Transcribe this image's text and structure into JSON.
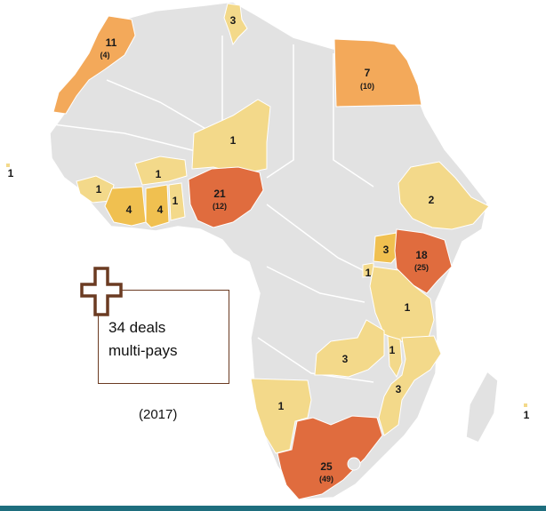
{
  "colors": {
    "land": "#e2e2e2",
    "border": "#ffffff",
    "tier1": "#f3d98a",
    "tier2": "#f0c050",
    "tier3": "#f3a95a",
    "tier4": "#e06c3e",
    "note_border": "#6b3b22",
    "bar": "#1e6e7e"
  },
  "countries": [
    {
      "name": "Morocco",
      "deals": "11",
      "secondary": "(4)"
    },
    {
      "name": "Tunisia",
      "deals": "3",
      "secondary": ""
    },
    {
      "name": "Egypt",
      "deals": "7",
      "secondary": "(10)"
    },
    {
      "name": "Niger",
      "deals": "1",
      "secondary": ""
    },
    {
      "name": "Burkina Faso",
      "deals": "1",
      "secondary": ""
    },
    {
      "name": "Guinea",
      "deals": "1",
      "secondary": ""
    },
    {
      "name": "Cote d'Ivoire",
      "deals": "4",
      "secondary": ""
    },
    {
      "name": "Ghana",
      "deals": "4",
      "secondary": ""
    },
    {
      "name": "Togo/Benin",
      "deals": "1",
      "secondary": ""
    },
    {
      "name": "Nigeria",
      "deals": "21",
      "secondary": "(12)"
    },
    {
      "name": "Ethiopia",
      "deals": "2",
      "secondary": ""
    },
    {
      "name": "Uganda",
      "deals": "3",
      "secondary": ""
    },
    {
      "name": "Kenya",
      "deals": "18",
      "secondary": "(25)"
    },
    {
      "name": "Rwanda",
      "deals": "1",
      "secondary": ""
    },
    {
      "name": "Tanzania",
      "deals": "1",
      "secondary": ""
    },
    {
      "name": "Zambia",
      "deals": "3",
      "secondary": ""
    },
    {
      "name": "Malawi",
      "deals": "1",
      "secondary": ""
    },
    {
      "name": "Mozambique",
      "deals": "3",
      "secondary": ""
    },
    {
      "name": "Namibia",
      "deals": "1",
      "secondary": ""
    },
    {
      "name": "South Africa",
      "deals": "25",
      "secondary": "(49)"
    },
    {
      "name": "Cape Verde",
      "deals": "1",
      "secondary": ""
    },
    {
      "name": "Mauritius",
      "deals": "1",
      "secondary": ""
    }
  ],
  "note": {
    "line1": "34 deals",
    "line2": "multi-pays"
  },
  "year": "(2017)"
}
